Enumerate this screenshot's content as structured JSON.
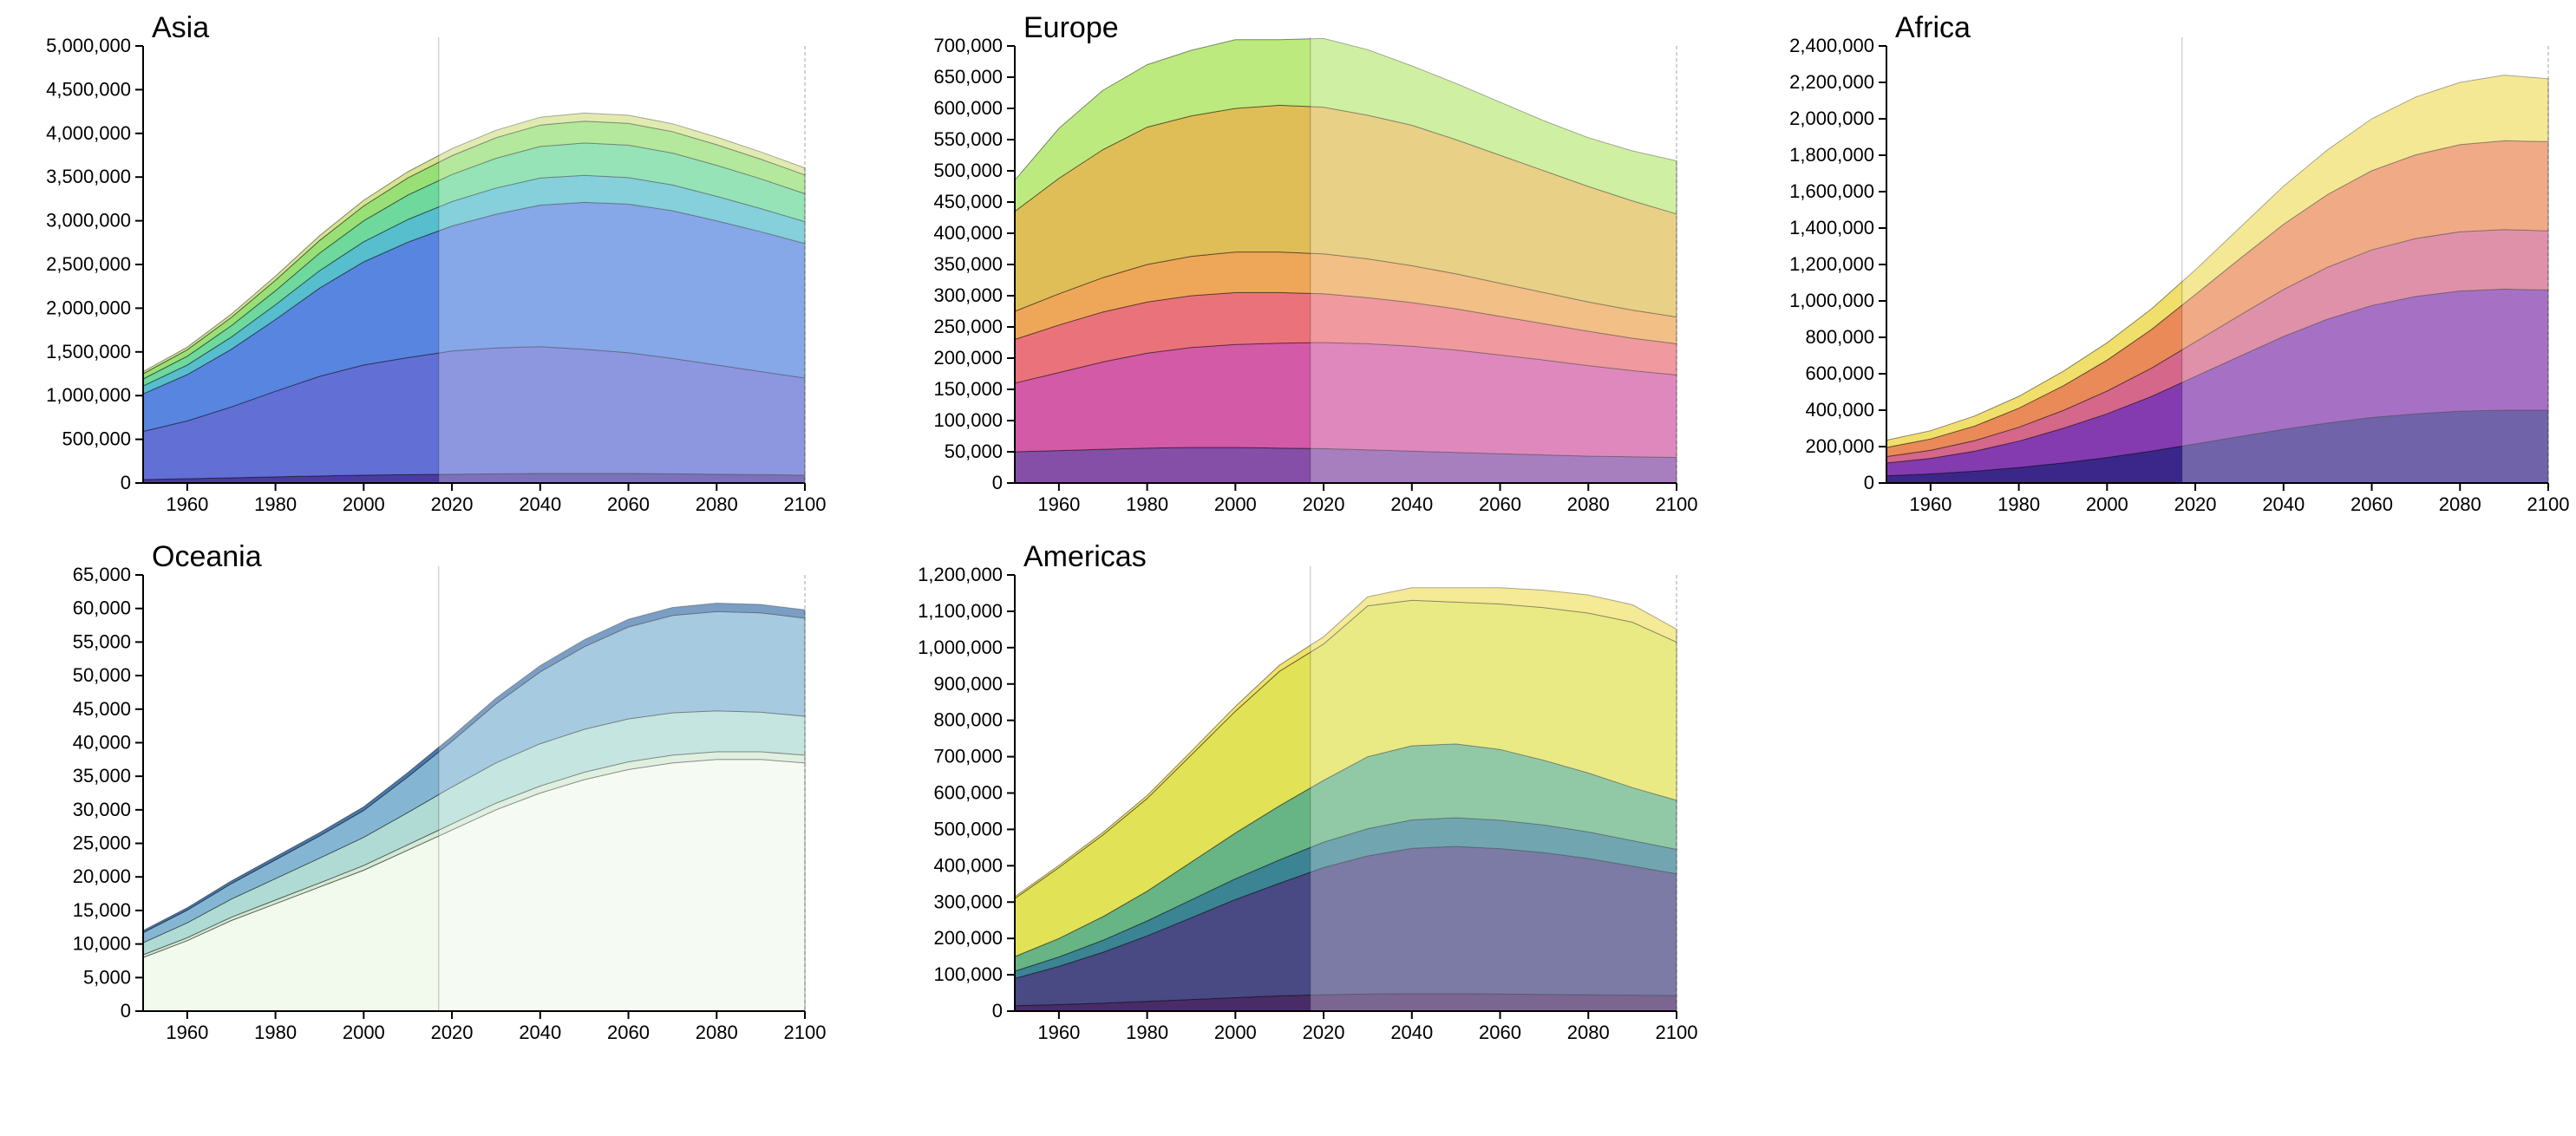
{
  "chart_data": [
    {
      "type": "area",
      "title": "Asia",
      "x": [
        1950,
        1960,
        1970,
        1980,
        1990,
        2000,
        2010,
        2020,
        2030,
        2040,
        2050,
        2060,
        2070,
        2080,
        2090,
        2100
      ],
      "xlim": [
        1950,
        2100
      ],
      "ylim": [
        0,
        5000000
      ],
      "xticks": [
        "1960",
        "1980",
        "2000",
        "2020",
        "2040",
        "2060",
        "2080",
        "2100"
      ],
      "yticks": [
        "0",
        "500,000",
        "1,000,000",
        "1,500,000",
        "2,000,000",
        "2,500,000",
        "3,000,000",
        "3,500,000",
        "4,000,000",
        "4,500,000",
        "5,000,000"
      ],
      "projection_start": 2017,
      "series": [
        {
          "color": "#3c2a98",
          "values": [
            40000,
            50000,
            60000,
            70000,
            80000,
            90000,
            95000,
            100000,
            105000,
            110000,
            110000,
            110000,
            105000,
            100000,
            95000,
            90000
          ]
        },
        {
          "color": "#5563d0",
          "values": [
            550000,
            660000,
            810000,
            980000,
            1140000,
            1260000,
            1340000,
            1410000,
            1440000,
            1450000,
            1420000,
            1380000,
            1320000,
            1250000,
            1180000,
            1110000
          ]
        },
        {
          "color": "#4a7bdc",
          "values": [
            430000,
            530000,
            660000,
            820000,
            1010000,
            1180000,
            1320000,
            1430000,
            1530000,
            1620000,
            1680000,
            1700000,
            1690000,
            1650000,
            1600000,
            1540000
          ]
        },
        {
          "color": "#48b8c8",
          "values": [
            90000,
            110000,
            140000,
            170000,
            200000,
            230000,
            260000,
            280000,
            300000,
            310000,
            310000,
            305000,
            295000,
            280000,
            265000,
            250000
          ]
        },
        {
          "color": "#62d595",
          "values": [
            80000,
            100000,
            130000,
            160000,
            200000,
            240000,
            280000,
            310000,
            340000,
            360000,
            370000,
            370000,
            365000,
            355000,
            340000,
            320000
          ]
        },
        {
          "color": "#8fdd6a",
          "values": [
            60000,
            75000,
            95000,
            120000,
            145000,
            170000,
            195000,
            215000,
            235000,
            245000,
            250000,
            250000,
            245000,
            235000,
            225000,
            215000
          ]
        },
        {
          "color": "#d2e28a",
          "values": [
            25000,
            30000,
            38000,
            46000,
            55000,
            64000,
            72000,
            80000,
            86000,
            90000,
            92000,
            92000,
            90000,
            87000,
            83000,
            80000
          ]
        }
      ]
    },
    {
      "type": "area",
      "title": "Europe",
      "x": [
        1950,
        1960,
        1970,
        1980,
        1990,
        2000,
        2010,
        2020,
        2030,
        2040,
        2050,
        2060,
        2070,
        2080,
        2090,
        2100
      ],
      "xlim": [
        1950,
        2100
      ],
      "ylim": [
        0,
        700000
      ],
      "xticks": [
        "1960",
        "1980",
        "2000",
        "2020",
        "2040",
        "2060",
        "2080",
        "2100"
      ],
      "yticks": [
        "0",
        "50,000",
        "100,000",
        "150,000",
        "200,000",
        "250,000",
        "300,000",
        "350,000",
        "400,000",
        "450,000",
        "500,000",
        "550,000",
        "600,000",
        "650,000",
        "700,000"
      ],
      "projection_start": 2017,
      "series": [
        {
          "color": "#7b3fa0",
          "values": [
            50000,
            52000,
            54000,
            56000,
            57000,
            57000,
            56000,
            55000,
            53000,
            51000,
            49000,
            47000,
            45000,
            43000,
            42000,
            41000
          ]
        },
        {
          "color": "#cf4c9e",
          "values": [
            110000,
            125000,
            140000,
            152000,
            160000,
            165000,
            168000,
            170000,
            170000,
            168000,
            164000,
            158000,
            152000,
            145000,
            138000,
            132000
          ]
        },
        {
          "color": "#e8666f",
          "values": [
            70000,
            76000,
            80000,
            82000,
            83000,
            83000,
            81000,
            78000,
            74000,
            70000,
            66000,
            62000,
            58000,
            55000,
            52000,
            50000
          ]
        },
        {
          "color": "#eda04a",
          "values": [
            45000,
            50000,
            55000,
            60000,
            63000,
            65000,
            65000,
            64000,
            62000,
            59000,
            56000,
            53000,
            50000,
            47000,
            45000,
            43000
          ]
        },
        {
          "color": "#dcb84a",
          "values": [
            160000,
            185000,
            205000,
            220000,
            225000,
            230000,
            235000,
            235000,
            230000,
            225000,
            215000,
            205000,
            195000,
            185000,
            175000,
            165000
          ]
        },
        {
          "color": "#b7e874",
          "values": [
            50000,
            80000,
            95000,
            100000,
            105000,
            110000,
            105000,
            110000,
            105000,
            95000,
            90000,
            85000,
            80000,
            78000,
            80000,
            85000
          ]
        }
      ]
    },
    {
      "type": "area",
      "title": "Africa",
      "x": [
        1950,
        1960,
        1970,
        1980,
        1990,
        2000,
        2010,
        2020,
        2030,
        2040,
        2050,
        2060,
        2070,
        2080,
        2090,
        2100
      ],
      "xlim": [
        1950,
        2100
      ],
      "ylim": [
        0,
        2400000
      ],
      "xticks": [
        "1960",
        "1980",
        "2000",
        "2020",
        "2040",
        "2060",
        "2080",
        "2100"
      ],
      "yticks": [
        "0",
        "200,000",
        "400,000",
        "600,000",
        "800,000",
        "1,000,000",
        "1,200,000",
        "1,400,000",
        "1,600,000",
        "1,800,000",
        "2,000,000",
        "2,200,000",
        "2,400,000"
      ],
      "projection_start": 2017,
      "series": [
        {
          "color": "#2a1580",
          "values": [
            40000,
            50000,
            65000,
            85000,
            110000,
            140000,
            175000,
            215000,
            255000,
            295000,
            330000,
            360000,
            380000,
            395000,
            400000,
            400000
          ]
        },
        {
          "color": "#7a2aa8",
          "values": [
            70000,
            85000,
            110000,
            145000,
            190000,
            240000,
            300000,
            370000,
            440000,
            510000,
            570000,
            615000,
            645000,
            660000,
            665000,
            660000
          ]
        },
        {
          "color": "#d05a80",
          "values": [
            35000,
            45000,
            58000,
            76000,
            98000,
            125000,
            155000,
            190000,
            225000,
            258000,
            285000,
            305000,
            318000,
            325000,
            327000,
            325000
          ]
        },
        {
          "color": "#e8804a",
          "values": [
            50000,
            62000,
            80000,
            105000,
            135000,
            170000,
            212000,
            260000,
            310000,
            358000,
            400000,
            435000,
            460000,
            478000,
            488000,
            490000
          ]
        },
        {
          "color": "#f0dc60",
          "values": [
            40000,
            45000,
            55000,
            65000,
            80000,
            95000,
            113000,
            135000,
            170000,
            209000,
            245000,
            285000,
            317000,
            342000,
            360000,
            345000
          ]
        }
      ]
    },
    {
      "type": "area",
      "title": "Oceania",
      "x": [
        1950,
        1960,
        1970,
        1980,
        1990,
        2000,
        2010,
        2020,
        2030,
        2040,
        2050,
        2060,
        2070,
        2080,
        2090,
        2100
      ],
      "xlim": [
        1950,
        2100
      ],
      "ylim": [
        0,
        65000
      ],
      "xticks": [
        "1960",
        "1980",
        "2000",
        "2020",
        "2040",
        "2060",
        "2080",
        "2100"
      ],
      "yticks": [
        "0",
        "5,000",
        "10,000",
        "15,000",
        "20,000",
        "25,000",
        "30,000",
        "35,000",
        "40,000",
        "45,000",
        "50,000",
        "55,000",
        "60,000",
        "65,000"
      ],
      "projection_start": 2017,
      "series": [
        {
          "color": "#f1f8ec",
          "values": [
            8000,
            10500,
            13500,
            16000,
            18500,
            21000,
            24000,
            27000,
            30000,
            32500,
            34500,
            36000,
            37000,
            37500,
            37500,
            37000
          ]
        },
        {
          "color": "#cfe8d0",
          "values": [
            400,
            450,
            500,
            550,
            600,
            700,
            800,
            900,
            1000,
            1050,
            1100,
            1150,
            1150,
            1150,
            1150,
            1150
          ]
        },
        {
          "color": "#a8d8d0",
          "values": [
            1800,
            2200,
            2700,
            3200,
            3700,
            4200,
            4800,
            5500,
            6000,
            6300,
            6400,
            6400,
            6300,
            6100,
            5900,
            5800
          ]
        },
        {
          "color": "#7ab0d0",
          "values": [
            1500,
            1900,
            2300,
            2800,
            3300,
            4000,
            5300,
            6800,
            8800,
            10700,
            12300,
            13700,
            14500,
            14800,
            14800,
            14600
          ]
        },
        {
          "color": "#3a6ea8",
          "values": [
            300,
            350,
            400,
            450,
            500,
            550,
            650,
            750,
            850,
            950,
            1050,
            1150,
            1200,
            1250,
            1250,
            1250
          ]
        }
      ]
    },
    {
      "type": "area",
      "title": "Americas",
      "x": [
        1950,
        1960,
        1970,
        1980,
        1990,
        2000,
        2010,
        2020,
        2030,
        2040,
        2050,
        2060,
        2070,
        2080,
        2090,
        2100
      ],
      "xlim": [
        1950,
        2100
      ],
      "ylim": [
        0,
        1200000
      ],
      "xticks": [
        "1960",
        "1980",
        "2000",
        "2020",
        "2040",
        "2060",
        "2080",
        "2100"
      ],
      "yticks": [
        "0",
        "100,000",
        "200,000",
        "300,000",
        "400,000",
        "500,000",
        "600,000",
        "700,000",
        "800,000",
        "900,000",
        "1,000,000",
        "1,100,000",
        "1,200,000"
      ],
      "projection_start": 2017,
      "series": [
        {
          "color": "#3a1a5a",
          "values": [
            15000,
            18000,
            22000,
            27000,
            32000,
            37000,
            42000,
            45000,
            47000,
            48000,
            48000,
            47000,
            46000,
            45000,
            44000,
            43000
          ]
        },
        {
          "color": "#3a3a7a",
          "values": [
            75000,
            105000,
            140000,
            180000,
            225000,
            270000,
            310000,
            350000,
            380000,
            400000,
            405000,
            400000,
            390000,
            375000,
            355000,
            335000
          ]
        },
        {
          "color": "#2a7a8a",
          "values": [
            20000,
            26000,
            33000,
            41000,
            49000,
            57000,
            64000,
            70000,
            75000,
            78000,
            79000,
            78000,
            76000,
            73000,
            70000,
            67000
          ]
        },
        {
          "color": "#5aae7a",
          "values": [
            40000,
            51000,
            65000,
            82000,
            104000,
            126000,
            149000,
            170000,
            198000,
            204000,
            203000,
            195000,
            178000,
            162000,
            146000,
            135000
          ]
        },
        {
          "color": "#e0e048",
          "values": [
            160000,
            195000,
            225000,
            255000,
            295000,
            335000,
            370000,
            375000,
            415000,
            400000,
            390000,
            400000,
            420000,
            440000,
            455000,
            435000
          ]
        },
        {
          "color": "#f0e060",
          "values": [
            5000,
            6000,
            7000,
            8000,
            10000,
            13000,
            17000,
            20000,
            25000,
            35000,
            40000,
            45000,
            48000,
            50000,
            48000,
            36000
          ]
        }
      ]
    }
  ]
}
